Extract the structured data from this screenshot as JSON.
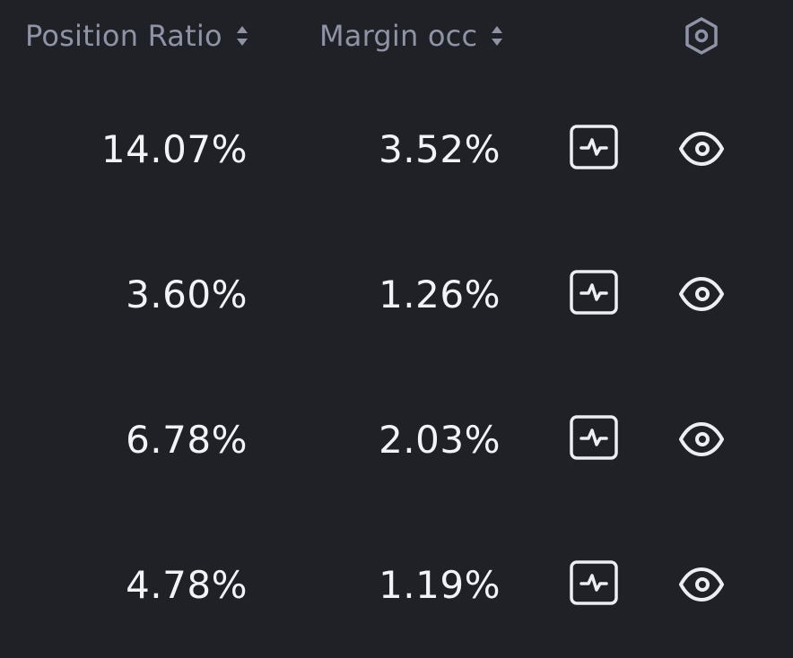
{
  "header": {
    "position_ratio_label": "Position Ratio",
    "margin_occ_label": "Margin occ",
    "settings_icon": "hexagon-settings-icon",
    "sort_icon": "sort-up-down-icon"
  },
  "rows": [
    {
      "position_ratio": "14.07%",
      "margin_occ": "3.52%",
      "chart_icon": "activity-chart-icon",
      "view_icon": "eye-icon"
    },
    {
      "position_ratio": "3.60%",
      "margin_occ": "1.26%",
      "chart_icon": "activity-chart-icon",
      "view_icon": "eye-icon"
    },
    {
      "position_ratio": "6.78%",
      "margin_occ": "2.03%",
      "chart_icon": "activity-chart-icon",
      "view_icon": "eye-icon"
    },
    {
      "position_ratio": "4.78%",
      "margin_occ": "1.19%",
      "chart_icon": "activity-chart-icon",
      "view_icon": "eye-icon"
    }
  ],
  "colors": {
    "background": "#202127",
    "header_text": "#8f93a6",
    "value_text": "#f2f3f6",
    "icon_stroke": "#eceef2"
  }
}
